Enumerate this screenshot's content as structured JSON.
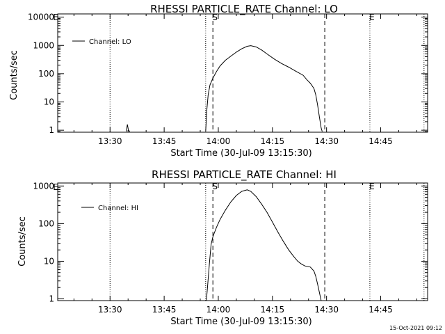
{
  "chart_data": [
    {
      "type": "line",
      "title": "RHESSI PARTICLE_RATE Channel: LO",
      "xlabel": "Start Time (30-Jul-09 13:15:30)",
      "ylabel": "Counts/sec",
      "y_scale": "log",
      "ylim": [
        0.85,
        13000
      ],
      "x_unit": "minutes after 13:15:30",
      "xlim": [
        0,
        102.5
      ],
      "x_tick_values": [
        14.5,
        29.5,
        44.5,
        59.5,
        74.5,
        89.5
      ],
      "x_tick_labels": [
        "13:30",
        "13:45",
        "14:00",
        "14:15",
        "14:30",
        "14:45"
      ],
      "y_tick_values": [
        1,
        10,
        100,
        1000,
        10000
      ],
      "y_tick_labels": [
        "1",
        "10",
        "100",
        "1000",
        "10000"
      ],
      "legend": {
        "placement": "top-left",
        "entries": [
          "Channel: LO"
        ]
      },
      "markers": [
        {
          "label": "S",
          "x": 43.0,
          "style": "dashed"
        },
        {
          "label": "",
          "x": 74.0,
          "style": "dashed"
        },
        {
          "label": "",
          "x": 14.5,
          "style": "dotted"
        },
        {
          "label": "",
          "x": 41.0,
          "style": "dotted"
        },
        {
          "label": "E",
          "x": 86.5,
          "style": "dotted"
        },
        {
          "label": "",
          "x": 101.5,
          "style": "dotted"
        }
      ],
      "corner_label": "E",
      "grid": false,
      "series": [
        {
          "name": "Channel: LO",
          "segments": [
            [
              [
                19.0,
                0.9
              ],
              [
                19.3,
                1.6
              ],
              [
                19.6,
                1.0
              ],
              [
                20.0,
                0.9
              ]
            ],
            [
              [
                41.0,
                0.9
              ],
              [
                41.3,
                5
              ],
              [
                41.7,
                18
              ],
              [
                42.2,
                40
              ],
              [
                43.0,
                70
              ],
              [
                44.0,
                120
              ],
              [
                45.0,
                190
              ],
              [
                46.5,
                300
              ],
              [
                48.0,
                420
              ],
              [
                49.5,
                580
              ],
              [
                51.0,
                760
              ],
              [
                52.5,
                930
              ],
              [
                53.5,
                980
              ],
              [
                55.0,
                880
              ],
              [
                56.5,
                690
              ],
              [
                58.0,
                500
              ],
              [
                60.0,
                330
              ],
              [
                62.0,
                230
              ],
              [
                64.0,
                170
              ],
              [
                66.0,
                122
              ],
              [
                68.0,
                88
              ],
              [
                69.0,
                62
              ],
              [
                70.0,
                46
              ],
              [
                71.0,
                30
              ],
              [
                71.5,
                18
              ],
              [
                72.0,
                8
              ],
              [
                72.5,
                3
              ],
              [
                73.0,
                1.2
              ],
              [
                73.3,
                0.9
              ]
            ]
          ]
        }
      ]
    },
    {
      "type": "line",
      "title": "RHESSI PARTICLE_RATE Channel: HI",
      "xlabel": "Start Time (30-Jul-09 13:15:30)",
      "ylabel": "Counts/sec",
      "y_scale": "log",
      "ylim": [
        0.9,
        1200
      ],
      "x_unit": "minutes after 13:15:30",
      "xlim": [
        0,
        102.5
      ],
      "x_tick_values": [
        14.5,
        29.5,
        44.5,
        59.5,
        74.5,
        89.5
      ],
      "x_tick_labels": [
        "13:30",
        "13:45",
        "14:00",
        "14:15",
        "14:30",
        "14:45"
      ],
      "y_tick_values": [
        1,
        10,
        100,
        1000
      ],
      "y_tick_labels": [
        "1",
        "10",
        "100",
        "1000"
      ],
      "legend": {
        "placement": "top-left",
        "entries": [
          "Channel: HI"
        ]
      },
      "markers": [
        {
          "label": "S",
          "x": 43.0,
          "style": "dashed"
        },
        {
          "label": "",
          "x": 74.0,
          "style": "dashed"
        },
        {
          "label": "",
          "x": 14.5,
          "style": "dotted"
        },
        {
          "label": "",
          "x": 41.0,
          "style": "dotted"
        },
        {
          "label": "E",
          "x": 86.5,
          "style": "dotted"
        },
        {
          "label": "",
          "x": 101.5,
          "style": "dotted"
        }
      ],
      "corner_label": "E",
      "grid": false,
      "series": [
        {
          "name": "Channel: HI",
          "segments": [
            [
              [
                41.2,
                0.9
              ],
              [
                41.5,
                2
              ],
              [
                42.0,
                8
              ],
              [
                42.5,
                28
              ],
              [
                43.0,
                45
              ],
              [
                44.0,
                80
              ],
              [
                45.0,
                130
              ],
              [
                46.5,
                230
              ],
              [
                48.0,
                380
              ],
              [
                49.5,
                560
              ],
              [
                51.0,
                720
              ],
              [
                52.5,
                790
              ],
              [
                53.5,
                720
              ],
              [
                55.0,
                520
              ],
              [
                56.5,
                330
              ],
              [
                58.0,
                200
              ],
              [
                59.5,
                110
              ],
              [
                61.0,
                60
              ],
              [
                62.5,
                34
              ],
              [
                64.0,
                20
              ],
              [
                65.5,
                13
              ],
              [
                66.5,
                10
              ],
              [
                67.5,
                8.5
              ],
              [
                68.5,
                7.5
              ],
              [
                70.0,
                7.0
              ],
              [
                71.0,
                5.5
              ],
              [
                71.5,
                4.0
              ],
              [
                72.0,
                2.5
              ],
              [
                72.5,
                1.5
              ],
              [
                73.0,
                0.9
              ]
            ]
          ]
        }
      ]
    }
  ],
  "footer": {
    "timestamp": "15-Oct-2021 09:12"
  }
}
